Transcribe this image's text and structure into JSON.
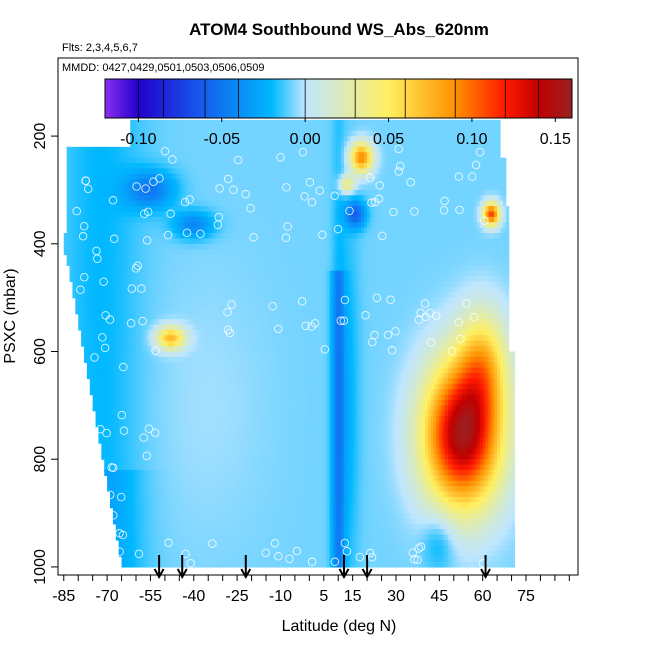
{
  "chart_data": {
    "type": "heatmap",
    "title": "ATOM4 Southbound WS_Abs_620nm",
    "subtitle_flts": "Flts: 2,3,4,5,6,7",
    "subtitle_mmdd": "MMDD: 0427,0429,0501,0503,0506,0509",
    "xlabel": "Latitude (deg N)",
    "ylabel": "PSXC (mbar)",
    "xlim": [
      -87,
      93
    ],
    "ylim": [
      1015,
      55
    ],
    "x_ticks": [
      -85,
      -70,
      -55,
      -40,
      -25,
      -10,
      5,
      15,
      30,
      45,
      60,
      75
    ],
    "x_minor_step": 5,
    "y_ticks": [
      200,
      400,
      600,
      800,
      1000
    ],
    "colorbar": {
      "range": [
        -0.12,
        0.16
      ],
      "ticks": [
        -0.1,
        -0.05,
        0.0,
        0.05,
        0.1,
        0.15
      ],
      "tick_labels": [
        "-0.10",
        "-0.05",
        "0.00",
        "0.05",
        "0.10",
        "0.15"
      ],
      "colors": [
        "#8b2ff0",
        "#2200cc",
        "#1560ee",
        "#00b8ff",
        "#bfe6ff",
        "#fff060",
        "#ff9000",
        "#ff1a00",
        "#c00000",
        "#992222"
      ],
      "color_stops": [
        -0.12,
        -0.1,
        -0.06,
        -0.02,
        0.0,
        0.05,
        0.09,
        0.12,
        0.14,
        0.16
      ]
    },
    "flight_profile_arrows_lat": [
      -52,
      -44,
      -22,
      12,
      20,
      61
    ],
    "data_region": {
      "upper_left_lat": -85,
      "upper_right_lat": 69,
      "pressure_top": 170,
      "pressure_bottom": 1000
    }
  }
}
